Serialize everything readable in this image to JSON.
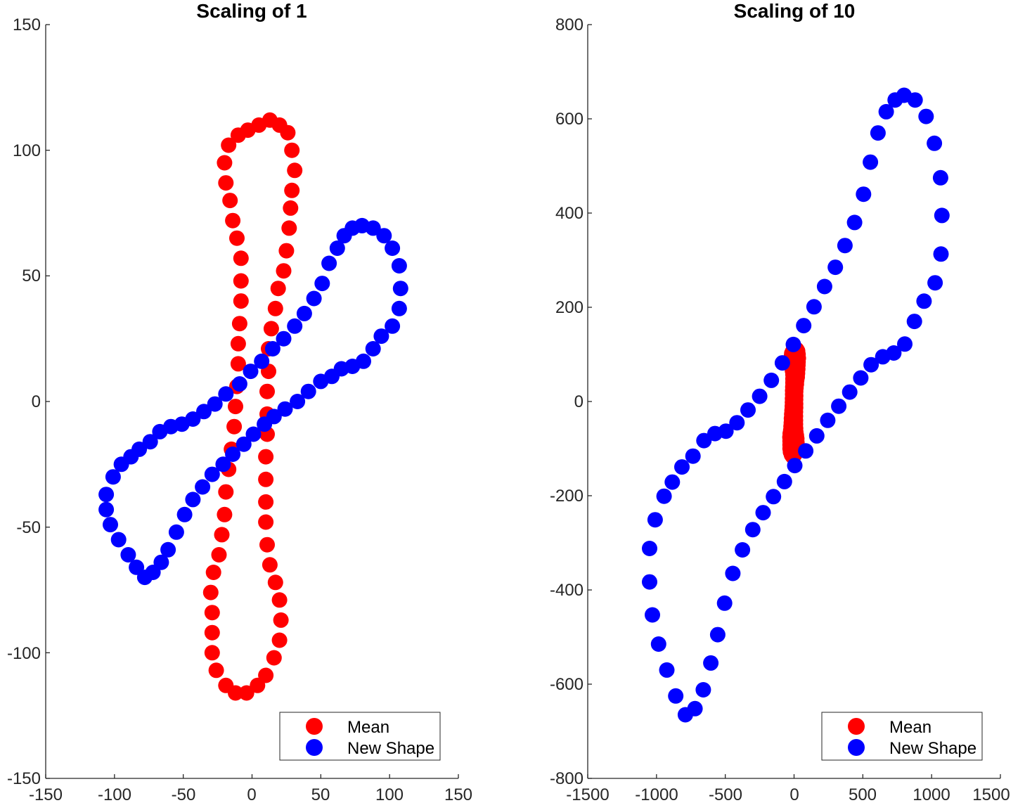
{
  "chart_data": [
    {
      "type": "scatter",
      "title": "Scaling of 1",
      "xlabel": "",
      "ylabel": "",
      "xlim": [
        -150,
        150
      ],
      "ylim": [
        -150,
        150
      ],
      "xticks": [
        -150,
        -100,
        -50,
        0,
        50,
        100,
        150
      ],
      "yticks": [
        -150,
        -100,
        -50,
        0,
        50,
        100,
        150
      ],
      "xtick_labels": [
        "-150",
        "-100",
        "-50",
        "0",
        "50",
        "100",
        "150"
      ],
      "ytick_labels": [
        "-150",
        "-100",
        "-50",
        "0",
        "50",
        "100",
        "150"
      ],
      "grid": false,
      "legend": {
        "position": "bottom-right",
        "entries": [
          "Mean",
          "New Shape"
        ]
      },
      "series": [
        {
          "name": "Mean",
          "color": "#ff0000",
          "points": [
            [
              13,
              112
            ],
            [
              20,
              110
            ],
            [
              26,
              107
            ],
            [
              29,
              100
            ],
            [
              31,
              92
            ],
            [
              29,
              84
            ],
            [
              28,
              77
            ],
            [
              27,
              69
            ],
            [
              25,
              60
            ],
            [
              23,
              52
            ],
            [
              19,
              45
            ],
            [
              17,
              37
            ],
            [
              14,
              29
            ],
            [
              12,
              21
            ],
            [
              12,
              12
            ],
            [
              11,
              4
            ],
            [
              11,
              -5
            ],
            [
              11,
              -13
            ],
            [
              10,
              -22
            ],
            [
              10,
              -31
            ],
            [
              10,
              -40
            ],
            [
              10,
              -48
            ],
            [
              11,
              -57
            ],
            [
              13,
              -65
            ],
            [
              17,
              -72
            ],
            [
              20,
              -79
            ],
            [
              21,
              -87
            ],
            [
              20,
              -95
            ],
            [
              16,
              -102
            ],
            [
              10,
              -109
            ],
            [
              4,
              -113
            ],
            [
              -4,
              -116
            ],
            [
              -12,
              -116
            ],
            [
              -19,
              -113
            ],
            [
              -26,
              -107
            ],
            [
              -29,
              -100
            ],
            [
              -29,
              -92
            ],
            [
              -29,
              -84
            ],
            [
              -30,
              -76
            ],
            [
              -28,
              -68
            ],
            [
              -24,
              -61
            ],
            [
              -22,
              -53
            ],
            [
              -20,
              -45
            ],
            [
              -19,
              -36
            ],
            [
              -17,
              -27
            ],
            [
              -15,
              -19
            ],
            [
              -13,
              -10
            ],
            [
              -12,
              -2
            ],
            [
              -11,
              6
            ],
            [
              -10,
              15
            ],
            [
              -10,
              23
            ],
            [
              -9,
              31
            ],
            [
              -8,
              40
            ],
            [
              -8,
              48
            ],
            [
              -8,
              57
            ],
            [
              -11,
              65
            ],
            [
              -14,
              72
            ],
            [
              -16,
              80
            ],
            [
              -19,
              87
            ],
            [
              -20,
              95
            ],
            [
              -17,
              102
            ],
            [
              -10,
              106
            ],
            [
              -3,
              108
            ],
            [
              5,
              110
            ]
          ]
        },
        {
          "name": "New Shape",
          "color": "#0000ff",
          "points": [
            [
              80,
              70
            ],
            [
              88,
              69
            ],
            [
              96,
              66
            ],
            [
              102,
              61
            ],
            [
              107,
              54
            ],
            [
              108,
              45
            ],
            [
              107,
              37
            ],
            [
              102,
              30
            ],
            [
              94,
              26
            ],
            [
              88,
              21
            ],
            [
              81,
              16
            ],
            [
              73,
              14
            ],
            [
              65,
              13
            ],
            [
              58,
              10
            ],
            [
              50,
              8
            ],
            [
              41,
              4
            ],
            [
              33,
              0
            ],
            [
              24,
              -3
            ],
            [
              16,
              -6
            ],
            [
              9,
              -9
            ],
            [
              1,
              -13
            ],
            [
              -6,
              -17
            ],
            [
              -14,
              -21
            ],
            [
              -21,
              -25
            ],
            [
              -29,
              -29
            ],
            [
              -36,
              -34
            ],
            [
              -43,
              -39
            ],
            [
              -49,
              -45
            ],
            [
              -55,
              -52
            ],
            [
              -61,
              -59
            ],
            [
              -66,
              -64
            ],
            [
              -72,
              -68
            ],
            [
              -78,
              -70
            ],
            [
              -84,
              -66
            ],
            [
              -90,
              -61
            ],
            [
              -97,
              -55
            ],
            [
              -103,
              -49
            ],
            [
              -106,
              -43
            ],
            [
              -106,
              -37
            ],
            [
              -101,
              -30
            ],
            [
              -95,
              -25
            ],
            [
              -88,
              -22
            ],
            [
              -82,
              -19
            ],
            [
              -74,
              -16
            ],
            [
              -67,
              -12
            ],
            [
              -59,
              -10
            ],
            [
              -51,
              -9
            ],
            [
              -43,
              -7
            ],
            [
              -35,
              -4
            ],
            [
              -27,
              -1
            ],
            [
              -19,
              3
            ],
            [
              -9,
              7
            ],
            [
              -1,
              12
            ],
            [
              7,
              16
            ],
            [
              15,
              21
            ],
            [
              23,
              25
            ],
            [
              31,
              30
            ],
            [
              38,
              35
            ],
            [
              45,
              41
            ],
            [
              51,
              47
            ],
            [
              56,
              55
            ],
            [
              62,
              61
            ],
            [
              67,
              66
            ],
            [
              73,
              69
            ]
          ]
        }
      ]
    },
    {
      "type": "scatter",
      "title": "Scaling of 10",
      "xlabel": "",
      "ylabel": "",
      "xlim": [
        -1500,
        1500
      ],
      "ylim": [
        -800,
        800
      ],
      "xticks": [
        -1500,
        -1000,
        -500,
        0,
        500,
        1000,
        1500
      ],
      "yticks": [
        -800,
        -600,
        -400,
        -200,
        0,
        200,
        400,
        600,
        800
      ],
      "xtick_labels": [
        "-1500",
        "-1000",
        "-500",
        "0",
        "500",
        "1000",
        "1500"
      ],
      "ytick_labels": [
        "-800",
        "-600",
        "-400",
        "-200",
        "0",
        "200",
        "400",
        "600",
        "800"
      ],
      "grid": false,
      "legend": {
        "position": "bottom-right",
        "entries": [
          "Mean",
          "New Shape"
        ]
      },
      "series": [
        {
          "name": "Mean",
          "color": "#ff0000",
          "points": [
            [
              13,
              112
            ],
            [
              20,
              110
            ],
            [
              26,
              107
            ],
            [
              29,
              100
            ],
            [
              31,
              92
            ],
            [
              29,
              84
            ],
            [
              28,
              77
            ],
            [
              27,
              69
            ],
            [
              25,
              60
            ],
            [
              23,
              52
            ],
            [
              19,
              45
            ],
            [
              17,
              37
            ],
            [
              14,
              29
            ],
            [
              12,
              21
            ],
            [
              12,
              12
            ],
            [
              11,
              4
            ],
            [
              11,
              -5
            ],
            [
              11,
              -13
            ],
            [
              10,
              -22
            ],
            [
              10,
              -31
            ],
            [
              10,
              -40
            ],
            [
              10,
              -48
            ],
            [
              11,
              -57
            ],
            [
              13,
              -65
            ],
            [
              17,
              -72
            ],
            [
              20,
              -79
            ],
            [
              21,
              -87
            ],
            [
              20,
              -95
            ],
            [
              16,
              -102
            ],
            [
              10,
              -109
            ],
            [
              4,
              -113
            ],
            [
              -4,
              -116
            ],
            [
              -12,
              -116
            ],
            [
              -19,
              -113
            ],
            [
              -26,
              -107
            ],
            [
              -29,
              -100
            ],
            [
              -29,
              -92
            ],
            [
              -29,
              -84
            ],
            [
              -30,
              -76
            ],
            [
              -28,
              -68
            ],
            [
              -24,
              -61
            ],
            [
              -22,
              -53
            ],
            [
              -20,
              -45
            ],
            [
              -19,
              -36
            ],
            [
              -17,
              -27
            ],
            [
              -15,
              -19
            ],
            [
              -13,
              -10
            ],
            [
              -12,
              -2
            ],
            [
              -11,
              6
            ],
            [
              -10,
              15
            ],
            [
              -10,
              23
            ],
            [
              -9,
              31
            ],
            [
              -8,
              40
            ],
            [
              -8,
              48
            ],
            [
              -8,
              57
            ],
            [
              -11,
              65
            ],
            [
              -14,
              72
            ],
            [
              -16,
              80
            ],
            [
              -19,
              87
            ],
            [
              -20,
              95
            ],
            [
              -17,
              102
            ],
            [
              -10,
              106
            ],
            [
              -3,
              108
            ],
            [
              5,
              110
            ]
          ]
        },
        {
          "name": "New Shape",
          "color": "#0000ff",
          "points": [
            [
              800,
              650
            ],
            [
              880,
              640
            ],
            [
              960,
              605
            ],
            [
              1020,
              548
            ],
            [
              1065,
              475
            ],
            [
              1075,
              395
            ],
            [
              1068,
              313
            ],
            [
              1025,
              252
            ],
            [
              945,
              213
            ],
            [
              875,
              170
            ],
            [
              805,
              122
            ],
            [
              725,
              103
            ],
            [
              645,
              95
            ],
            [
              560,
              78
            ],
            [
              485,
              50
            ],
            [
              405,
              20
            ],
            [
              325,
              -10
            ],
            [
              245,
              -40
            ],
            [
              165,
              -73
            ],
            [
              85,
              -105
            ],
            [
              5,
              -136
            ],
            [
              -70,
              -170
            ],
            [
              -150,
              -202
            ],
            [
              -225,
              -236
            ],
            [
              -300,
              -272
            ],
            [
              -375,
              -315
            ],
            [
              -445,
              -365
            ],
            [
              -505,
              -428
            ],
            [
              -555,
              -495
            ],
            [
              -605,
              -555
            ],
            [
              -660,
              -612
            ],
            [
              -720,
              -652
            ],
            [
              -790,
              -665
            ],
            [
              -860,
              -625
            ],
            [
              -925,
              -570
            ],
            [
              -985,
              -515
            ],
            [
              -1030,
              -453
            ],
            [
              -1050,
              -383
            ],
            [
              -1050,
              -312
            ],
            [
              -1010,
              -251
            ],
            [
              -945,
              -201
            ],
            [
              -885,
              -171
            ],
            [
              -815,
              -139
            ],
            [
              -735,
              -116
            ],
            [
              -655,
              -83
            ],
            [
              -575,
              -68
            ],
            [
              -495,
              -63
            ],
            [
              -415,
              -45
            ],
            [
              -335,
              -18
            ],
            [
              -250,
              11
            ],
            [
              -165,
              45
            ],
            [
              -85,
              82
            ],
            [
              -5,
              121
            ],
            [
              70,
              161
            ],
            [
              145,
              201
            ],
            [
              222,
              244
            ],
            [
              300,
              285
            ],
            [
              370,
              331
            ],
            [
              440,
              380
            ],
            [
              505,
              440
            ],
            [
              555,
              508
            ],
            [
              610,
              570
            ],
            [
              670,
              615
            ],
            [
              735,
              640
            ]
          ]
        }
      ]
    }
  ]
}
